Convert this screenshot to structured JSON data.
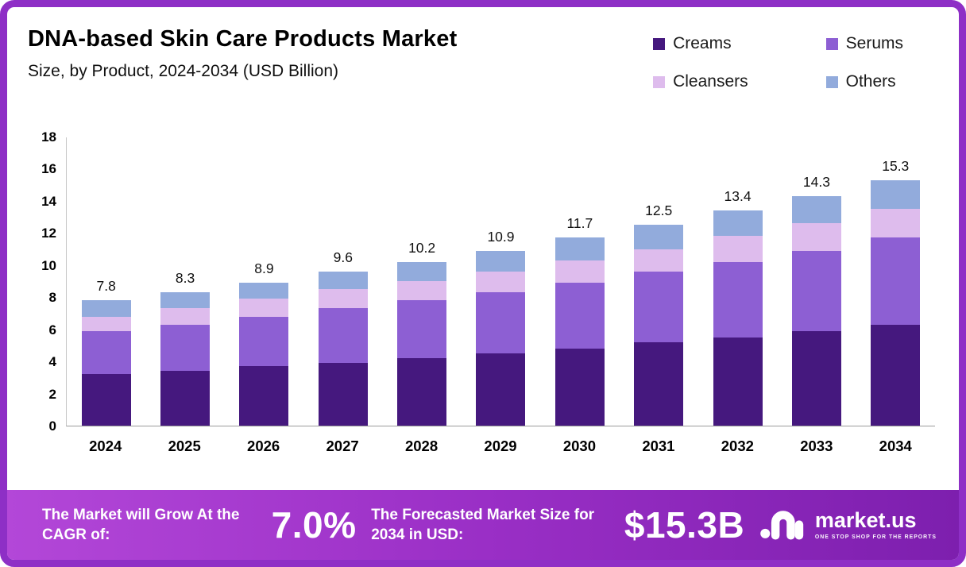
{
  "colors": {
    "frame": "#8e2fc6",
    "banner_gradient": [
      "#b347d8",
      "#9a2fc6",
      "#7d1fae"
    ]
  },
  "chart_data": {
    "type": "bar",
    "subtype": "stacked",
    "title": "DNA-based Skin Care Products Market",
    "subtitle": "Size, by Product, 2024-2034 (USD Billion)",
    "categories": [
      "2024",
      "2025",
      "2026",
      "2027",
      "2028",
      "2029",
      "2030",
      "2031",
      "2032",
      "2033",
      "2034"
    ],
    "series": [
      {
        "name": "Creams",
        "color": "#45187e",
        "values": [
          3.2,
          3.4,
          3.7,
          3.9,
          4.2,
          4.5,
          4.8,
          5.2,
          5.5,
          5.9,
          6.3
        ]
      },
      {
        "name": "Serums",
        "color": "#8d5fd3",
        "values": [
          2.7,
          2.9,
          3.1,
          3.4,
          3.6,
          3.8,
          4.1,
          4.4,
          4.7,
          5.0,
          5.4
        ]
      },
      {
        "name": "Cleansers",
        "color": "#debced",
        "values": [
          0.9,
          1.0,
          1.1,
          1.2,
          1.2,
          1.3,
          1.4,
          1.4,
          1.6,
          1.7,
          1.8
        ]
      },
      {
        "name": "Others",
        "color": "#92abdc",
        "values": [
          1.0,
          1.0,
          1.0,
          1.1,
          1.2,
          1.3,
          1.4,
          1.5,
          1.6,
          1.7,
          1.8
        ]
      }
    ],
    "totals": [
      "7.8",
      "8.3",
      "8.9",
      "9.6",
      "10.2",
      "10.9",
      "11.7",
      "12.5",
      "13.4",
      "14.3",
      "15.3"
    ],
    "ylabel": "",
    "xlabel": "",
    "ylim": [
      0,
      18
    ],
    "yticks": [
      0,
      2,
      4,
      6,
      8,
      10,
      12,
      14,
      16,
      18
    ],
    "grid": false,
    "legend_position": "top-right"
  },
  "banner": {
    "cagr_label": "The Market will Grow At the CAGR of:",
    "cagr_value": "7.0%",
    "forecast_label": "The Forecasted Market Size for 2034 in USD:",
    "forecast_value": "$15.3B",
    "brand_name": "market.us",
    "brand_tagline": "ONE STOP SHOP FOR THE REPORTS"
  }
}
